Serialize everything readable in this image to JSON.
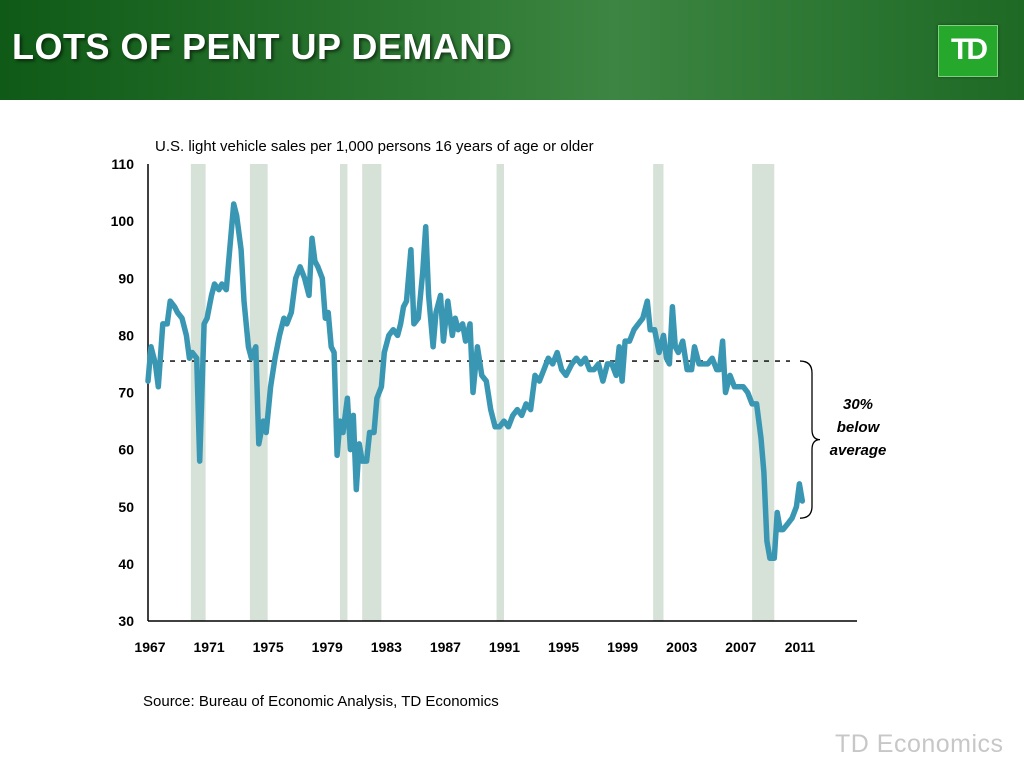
{
  "header": {
    "title": "LOTS OF PENT UP DEMAND",
    "logo_text": "TD"
  },
  "chart_data": {
    "type": "line",
    "subtitle": "U.S. light vehicle sales per 1,000 persons 16 years of age or older",
    "ylim": [
      30,
      110
    ],
    "yticks": [
      110,
      100,
      90,
      80,
      70,
      60,
      50,
      40,
      30
    ],
    "xlim": [
      1967,
      2015
    ],
    "xtick_labels": [
      "1967",
      "1971",
      "1975",
      "1979",
      "1983",
      "1987",
      "1991",
      "1995",
      "1999",
      "2003",
      "2007",
      "2011"
    ],
    "average": 75.5,
    "recession_bands": [
      [
        1969.9,
        1970.9
      ],
      [
        1973.9,
        1975.1
      ],
      [
        1980.0,
        1980.5
      ],
      [
        1981.5,
        1982.8
      ],
      [
        1990.6,
        1991.1
      ],
      [
        2001.2,
        2001.9
      ],
      [
        2007.9,
        2009.4
      ]
    ],
    "annotation": [
      "30%",
      "below",
      "average"
    ],
    "series": [
      {
        "color": "#3a97b3",
        "points": [
          [
            1967.0,
            72
          ],
          [
            1967.2,
            78
          ],
          [
            1967.5,
            75
          ],
          [
            1967.7,
            71
          ],
          [
            1968.0,
            82
          ],
          [
            1968.3,
            82
          ],
          [
            1968.5,
            86
          ],
          [
            1968.8,
            85
          ],
          [
            1969.0,
            84
          ],
          [
            1969.3,
            83
          ],
          [
            1969.6,
            80
          ],
          [
            1969.8,
            76
          ],
          [
            1970.0,
            77
          ],
          [
            1970.3,
            76
          ],
          [
            1970.5,
            58
          ],
          [
            1970.8,
            82
          ],
          [
            1971.0,
            83
          ],
          [
            1971.3,
            87
          ],
          [
            1971.5,
            89
          ],
          [
            1971.8,
            88
          ],
          [
            1972.0,
            89
          ],
          [
            1972.3,
            88
          ],
          [
            1972.5,
            94
          ],
          [
            1972.8,
            103
          ],
          [
            1973.0,
            101
          ],
          [
            1973.3,
            95
          ],
          [
            1973.5,
            86
          ],
          [
            1973.8,
            78
          ],
          [
            1974.0,
            76
          ],
          [
            1974.3,
            78
          ],
          [
            1974.5,
            61
          ],
          [
            1974.8,
            65
          ],
          [
            1975.0,
            63
          ],
          [
            1975.3,
            71
          ],
          [
            1975.6,
            76
          ],
          [
            1975.9,
            80
          ],
          [
            1976.2,
            83
          ],
          [
            1976.4,
            82
          ],
          [
            1976.7,
            84
          ],
          [
            1977.0,
            90
          ],
          [
            1977.3,
            92
          ],
          [
            1977.6,
            90
          ],
          [
            1977.9,
            87
          ],
          [
            1978.1,
            97
          ],
          [
            1978.3,
            93
          ],
          [
            1978.5,
            92
          ],
          [
            1978.8,
            90
          ],
          [
            1979.0,
            83
          ],
          [
            1979.2,
            84
          ],
          [
            1979.4,
            78
          ],
          [
            1979.6,
            77
          ],
          [
            1979.8,
            59
          ],
          [
            1980.0,
            65
          ],
          [
            1980.2,
            63
          ],
          [
            1980.5,
            69
          ],
          [
            1980.7,
            60
          ],
          [
            1980.9,
            66
          ],
          [
            1981.1,
            53
          ],
          [
            1981.3,
            61
          ],
          [
            1981.5,
            58
          ],
          [
            1981.8,
            58
          ],
          [
            1982.0,
            63
          ],
          [
            1982.3,
            63
          ],
          [
            1982.5,
            69
          ],
          [
            1982.8,
            71
          ],
          [
            1983.0,
            77
          ],
          [
            1983.3,
            80
          ],
          [
            1983.6,
            81
          ],
          [
            1983.9,
            80
          ],
          [
            1984.1,
            82
          ],
          [
            1984.3,
            85
          ],
          [
            1984.5,
            86
          ],
          [
            1984.8,
            95
          ],
          [
            1985.0,
            82
          ],
          [
            1985.3,
            83
          ],
          [
            1985.6,
            91
          ],
          [
            1985.8,
            99
          ],
          [
            1986.0,
            87
          ],
          [
            1986.3,
            78
          ],
          [
            1986.5,
            84
          ],
          [
            1986.8,
            87
          ],
          [
            1987.0,
            79
          ],
          [
            1987.3,
            86
          ],
          [
            1987.6,
            80
          ],
          [
            1987.8,
            83
          ],
          [
            1988.0,
            81
          ],
          [
            1988.3,
            82
          ],
          [
            1988.5,
            79
          ],
          [
            1988.8,
            82
          ],
          [
            1989.0,
            70
          ],
          [
            1989.3,
            78
          ],
          [
            1989.6,
            73
          ],
          [
            1989.9,
            72
          ],
          [
            1990.2,
            67
          ],
          [
            1990.5,
            64
          ],
          [
            1990.8,
            64
          ],
          [
            1991.1,
            65
          ],
          [
            1991.4,
            64
          ],
          [
            1991.7,
            66
          ],
          [
            1992.0,
            67
          ],
          [
            1992.3,
            66
          ],
          [
            1992.6,
            68
          ],
          [
            1992.9,
            67
          ],
          [
            1993.2,
            73
          ],
          [
            1993.5,
            72
          ],
          [
            1993.8,
            74
          ],
          [
            1994.1,
            76
          ],
          [
            1994.4,
            75
          ],
          [
            1994.7,
            77
          ],
          [
            1995.0,
            74
          ],
          [
            1995.3,
            73
          ],
          [
            1995.7,
            75
          ],
          [
            1996.0,
            76
          ],
          [
            1996.3,
            75
          ],
          [
            1996.6,
            76
          ],
          [
            1996.9,
            74
          ],
          [
            1997.2,
            74
          ],
          [
            1997.5,
            75
          ],
          [
            1997.8,
            72
          ],
          [
            1998.1,
            75
          ],
          [
            1998.4,
            75
          ],
          [
            1998.7,
            73
          ],
          [
            1998.9,
            78
          ],
          [
            1999.1,
            72
          ],
          [
            1999.3,
            79
          ],
          [
            1999.6,
            79
          ],
          [
            1999.9,
            81
          ],
          [
            2000.2,
            82
          ],
          [
            2000.5,
            83
          ],
          [
            2000.8,
            86
          ],
          [
            2001.0,
            81
          ],
          [
            2001.3,
            81
          ],
          [
            2001.6,
            77
          ],
          [
            2001.9,
            80
          ],
          [
            2002.1,
            76
          ],
          [
            2002.3,
            75
          ],
          [
            2002.5,
            85
          ],
          [
            2002.7,
            78
          ],
          [
            2002.9,
            77
          ],
          [
            2003.2,
            79
          ],
          [
            2003.5,
            74
          ],
          [
            2003.8,
            74
          ],
          [
            2004.0,
            78
          ],
          [
            2004.3,
            75
          ],
          [
            2004.6,
            75
          ],
          [
            2004.9,
            75
          ],
          [
            2005.2,
            76
          ],
          [
            2005.5,
            74
          ],
          [
            2005.7,
            74
          ],
          [
            2005.9,
            79
          ],
          [
            2006.1,
            70
          ],
          [
            2006.4,
            73
          ],
          [
            2006.7,
            71
          ],
          [
            2007.0,
            71
          ],
          [
            2007.3,
            71
          ],
          [
            2007.6,
            70
          ],
          [
            2007.9,
            68
          ],
          [
            2008.2,
            68
          ],
          [
            2008.5,
            62
          ],
          [
            2008.7,
            56
          ],
          [
            2008.9,
            44
          ],
          [
            2009.1,
            41
          ],
          [
            2009.4,
            41
          ],
          [
            2009.6,
            49
          ],
          [
            2009.8,
            46
          ],
          [
            2010.0,
            46
          ],
          [
            2010.3,
            47
          ],
          [
            2010.6,
            48
          ],
          [
            2010.9,
            50
          ],
          [
            2011.1,
            54
          ],
          [
            2011.3,
            51
          ]
        ]
      }
    ]
  },
  "source": "Source: Bureau of Economic Analysis, TD Economics",
  "footer": {
    "brand": "TD Economics"
  }
}
